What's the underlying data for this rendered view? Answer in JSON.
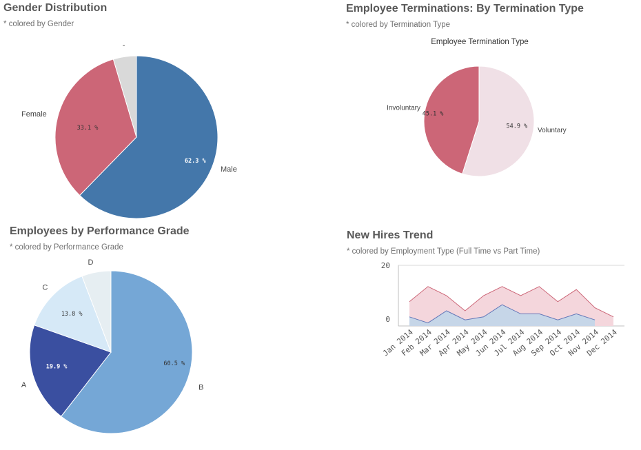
{
  "colors": {
    "male": "#4477aa",
    "female": "#cc6677",
    "unknown_gender": "#d9d9d9",
    "involuntary": "#cc6677",
    "voluntary": "#f0e0e6",
    "grade_a": "#3a4fa0",
    "grade_b": "#75a7d6",
    "grade_c": "#d6e9f7",
    "grade_d": "#e6eef2",
    "full_time_fill": "#f4d6dc",
    "full_time_line": "#cc6677",
    "part_time_fill": "#c6d6e8",
    "part_time_line": "#6377b8"
  },
  "panels": {
    "gender": {
      "title": "Gender Distribution",
      "subtitle": "* colored by Gender"
    },
    "terminations": {
      "title": "Employee Terminations: By Termination Type",
      "subtitle": "* colored by Termination Type"
    },
    "performance": {
      "title": "Employees by Performance Grade",
      "subtitle": "* colored by Performance Grade"
    },
    "hires": {
      "title": "New Hires Trend",
      "subtitle": "* colored by Employment Type (Full Time vs Part Time)"
    }
  },
  "chart_data": [
    {
      "type": "pie",
      "title": "Gender Distribution",
      "slices": [
        {
          "label": "Male",
          "value": 62.3,
          "value_label": "62.3 %",
          "color_key": "male"
        },
        {
          "label": "Female",
          "value": 33.1,
          "value_label": "33.1 %",
          "color_key": "female"
        },
        {
          "label": "-",
          "value": 4.6,
          "value_label": "",
          "color_key": "unknown_gender"
        }
      ]
    },
    {
      "type": "pie",
      "title": "Employee Terminations: By Termination Type",
      "inner_title": "Employee Termination Type",
      "slices": [
        {
          "label": "Voluntary",
          "value": 54.9,
          "value_label": "54.9 %",
          "color_key": "voluntary"
        },
        {
          "label": "Involuntary",
          "value": 45.1,
          "value_label": "45.1 %",
          "color_key": "involuntary"
        }
      ]
    },
    {
      "type": "pie",
      "title": "Employees by Performance Grade",
      "slices": [
        {
          "label": "B",
          "value": 60.5,
          "value_label": "60.5 %",
          "color_key": "grade_b"
        },
        {
          "label": "A",
          "value": 19.9,
          "value_label": "19.9 %",
          "color_key": "grade_a"
        },
        {
          "label": "C",
          "value": 13.8,
          "value_label": "13.8 %",
          "color_key": "grade_c"
        },
        {
          "label": "D",
          "value": 5.8,
          "value_label": "",
          "color_key": "grade_d"
        }
      ]
    },
    {
      "type": "area",
      "title": "New Hires Trend",
      "categories": [
        "Jan 2014",
        "Feb 2014",
        "Mar 2014",
        "Apr 2014",
        "May 2014",
        "Jun 2014",
        "Jul 2014",
        "Aug 2014",
        "Sep 2014",
        "Oct 2014",
        "Nov 2014",
        "Dec 2014"
      ],
      "y_ticks": [
        "20",
        "0"
      ],
      "ylim": [
        0,
        20
      ],
      "series": [
        {
          "key": "total",
          "values": [
            8,
            13,
            10,
            5,
            10,
            13,
            10,
            13,
            8,
            12,
            6,
            3
          ]
        },
        {
          "key": "part",
          "values": [
            3,
            1,
            5,
            2,
            3,
            7,
            4,
            4,
            2,
            4,
            2,
            null
          ]
        }
      ]
    }
  ]
}
